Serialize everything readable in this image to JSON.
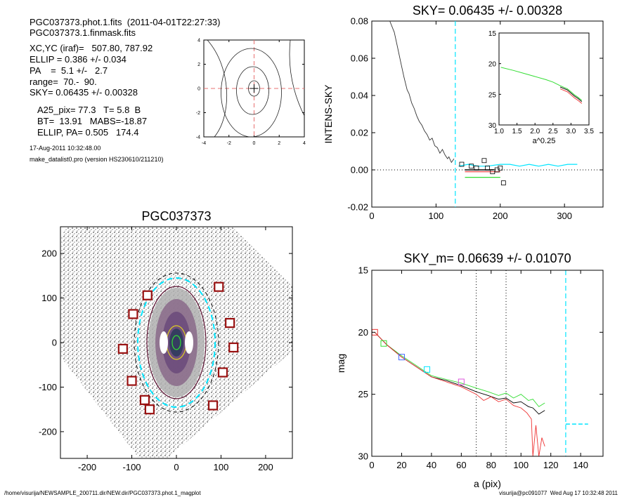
{
  "header": {
    "file_line": "PGC037373.phot.1.fits  (2011-04-01T22:27:33)",
    "mask_line": "PGC037373.1.finmask.fits",
    "xcyc_line": "XC,YC (iraf)=   507.80, 787.92",
    "ellip_line": "ELLIP = 0.386 +/- 0.034",
    "pa_line": "PA    =  5.1 +/-   2.7",
    "range_line": "range=  70.-  90.",
    "sky_line": "SKY= 0.06435 +/- 0.00328",
    "a25_line": "A25_pix= 77.3   T= 5.8  B",
    "bt_line": "BT=  13.91   MABS=-18.87",
    "ellippa_line": "ELLIP, PA= 0.505   174.4",
    "date_line": "17-Aug-2011 10:32:48.00",
    "program_line": "make_datalist0.pro (version HS230610/211210)"
  },
  "footer": {
    "path": "/home/visurija/NEWSAMPLE_200711.dir/NEW.dir/PGC037373.phot.1_magplot",
    "user": "visurija@pc091077  Wed Aug 17 10:32:48 2011"
  },
  "colors": {
    "cyan_dash": "#00e5ff",
    "red_dash": "#e87070",
    "green": "#33dd33",
    "red": "#ee3333",
    "blue": "#4466ff",
    "magenta": "#dd55dd",
    "star_box": "#991111"
  },
  "chart_data": [
    {
      "id": "contour",
      "type": "contour",
      "title": "",
      "xlim": [
        -4,
        4
      ],
      "ylim": [
        -4,
        4
      ],
      "xticks": [
        "-4",
        "-2",
        "0",
        "2",
        "4"
      ],
      "yticks": [
        "-4",
        "-2",
        "0",
        "2",
        "4"
      ],
      "center_cross": [
        0,
        0
      ]
    },
    {
      "id": "sky",
      "type": "line",
      "title": "SKY= 0.06435 +/- 0.00328",
      "xlabel": "",
      "ylabel": "INTENS-SKY",
      "xlim": [
        0,
        360
      ],
      "ylim": [
        -0.02,
        0.08
      ],
      "xticks": [
        "0",
        "100",
        "200",
        "300"
      ],
      "yticks": [
        "-0.02",
        "0.00",
        "0.02",
        "0.04",
        "0.06",
        "0.08"
      ],
      "vline_cyan": 130,
      "profile": {
        "x": [
          28,
          35,
          40,
          45,
          50,
          55,
          58,
          62,
          66,
          70,
          74,
          78,
          82,
          86,
          90,
          94,
          98,
          102,
          106,
          110,
          114,
          118,
          120,
          124,
          128
        ],
        "y": [
          0.08,
          0.074,
          0.066,
          0.058,
          0.05,
          0.043,
          0.041,
          0.036,
          0.033,
          0.029,
          0.026,
          0.024,
          0.021,
          0.019,
          0.016,
          0.017,
          0.013,
          0.012,
          0.009,
          0.011,
          0.008,
          0.006,
          0.007,
          0.004,
          0.006
        ]
      },
      "squares": {
        "x": [
          140,
          155,
          163,
          175,
          180,
          188,
          195,
          200,
          205
        ],
        "y": [
          0.003,
          0.002,
          0.001,
          0.005,
          0.001,
          -0.001,
          0.0,
          0.001,
          -0.007
        ]
      },
      "sky_segments": [
        {
          "name": "cyan",
          "color": "#00e5ff",
          "x": [
            135,
            150,
            165,
            180,
            200,
            215,
            230,
            245,
            260,
            275,
            290,
            305,
            320
          ],
          "y": [
            0.002,
            0.003,
            0.002,
            0.002,
            0.003,
            0.003,
            0.002,
            0.003,
            0.002,
            0.003,
            0.002,
            0.003,
            0.003
          ]
        },
        {
          "name": "black",
          "color": "#000000",
          "x": [
            145,
            190
          ],
          "y": [
            0.0,
            0.0
          ]
        },
        {
          "name": "green",
          "color": "#33dd33",
          "x": [
            145,
            200
          ],
          "y": [
            -0.004,
            -0.004
          ]
        },
        {
          "name": "red",
          "color": "#ee3333",
          "x": [
            145,
            200
          ],
          "y": [
            -0.001,
            -0.001
          ]
        }
      ],
      "inset": {
        "xlabel": "a^0.25",
        "xlim": [
          1.0,
          3.5
        ],
        "ylim": [
          15,
          30
        ],
        "xticks": [
          "1.0",
          "1.5",
          "2.0",
          "2.5",
          "3.0",
          "3.5"
        ],
        "yticks": [
          "15",
          "20",
          "25",
          "30"
        ],
        "curve": {
          "x": [
            1.05,
            1.4,
            1.7,
            2.0,
            2.3,
            2.5,
            2.7,
            2.9,
            3.0,
            3.1,
            3.2,
            3.3
          ],
          "y": [
            20.6,
            21.1,
            21.6,
            22.1,
            22.6,
            23.0,
            23.6,
            24.1,
            24.6,
            25.1,
            25.5,
            26.0
          ]
        }
      }
    },
    {
      "id": "image",
      "type": "image",
      "title": "PGC037373",
      "xlim": [
        -260,
        260
      ],
      "ylim": [
        -260,
        260
      ],
      "xticks": [
        "-200",
        "-100",
        "0",
        "100",
        "200"
      ],
      "yticks": [
        "-200",
        "-100",
        "0",
        "100",
        "200"
      ],
      "boxes": {
        "x": [
          -65,
          -97,
          -120,
          -100,
          -71,
          -60,
          95,
          120,
          128,
          104,
          82
        ],
        "y": [
          106,
          64,
          -14,
          -86,
          -129,
          -150,
          125,
          44,
          -11,
          -67,
          -141
        ]
      }
    },
    {
      "id": "mag",
      "type": "line",
      "title": "SKY_m=  0.06639 +/- 0.01070",
      "xlabel": "a (pix)",
      "ylabel": "mag",
      "xlim": [
        0,
        155
      ],
      "ylim": [
        30,
        15
      ],
      "xticks": [
        "0",
        "20",
        "40",
        "60",
        "80",
        "100",
        "120",
        "140"
      ],
      "yticks": [
        "15",
        "20",
        "25",
        "30"
      ],
      "vlines_dotted": [
        70,
        90
      ],
      "vline_cyan": 130,
      "sky_level_segment": {
        "x": [
          130,
          145
        ],
        "y": [
          27.4,
          27.4
        ]
      },
      "squares": {
        "x": [
          2,
          8,
          20,
          37,
          60
        ],
        "y": [
          20.0,
          20.9,
          22.0,
          23.0,
          24.0
        ],
        "colors": [
          "#ee3333",
          "#33dd33",
          "#4466ff",
          "#00e5ff",
          "#dd55dd"
        ]
      },
      "series": [
        {
          "name": "green",
          "color": "#33dd33",
          "x": [
            2,
            10,
            20,
            30,
            40,
            50,
            60,
            70,
            78,
            85,
            90,
            95,
            100,
            105,
            108,
            112,
            116
          ],
          "y": [
            20.0,
            21.0,
            21.9,
            22.7,
            23.5,
            23.8,
            24.1,
            24.5,
            24.8,
            25.1,
            24.9,
            25.3,
            25.0,
            25.5,
            25.4,
            26.0,
            25.7
          ]
        },
        {
          "name": "black",
          "color": "#000000",
          "x": [
            2,
            10,
            20,
            30,
            40,
            50,
            60,
            70,
            78,
            85,
            90,
            95,
            100,
            105,
            108,
            112,
            116
          ],
          "y": [
            20.0,
            21.0,
            22.0,
            22.8,
            23.6,
            23.9,
            24.3,
            24.8,
            25.1,
            25.4,
            25.3,
            25.7,
            25.6,
            26.0,
            26.1,
            26.6,
            26.3
          ]
        },
        {
          "name": "red",
          "color": "#ee3333",
          "x": [
            2,
            10,
            20,
            30,
            40,
            50,
            60,
            70,
            75,
            80,
            85,
            90,
            95,
            100,
            104,
            107,
            108,
            110,
            112,
            114,
            116
          ],
          "y": [
            20.0,
            21.0,
            22.0,
            22.8,
            23.6,
            24.0,
            24.4,
            25.0,
            25.5,
            25.2,
            25.6,
            25.4,
            25.9,
            26.1,
            26.5,
            27.0,
            30.0,
            27.5,
            30.0,
            28.5,
            29.2
          ]
        }
      ]
    }
  ]
}
